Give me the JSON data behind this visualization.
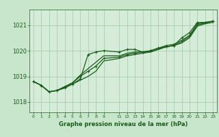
{
  "bg_color": "#c8e6cc",
  "plot_bg_color": "#d4ecd8",
  "grid_color": "#a0c8a8",
  "line_color": "#1a5c1a",
  "marker_color": "#1a5c1a",
  "xlabel": "Graphe pression niveau de la mer (hPa)",
  "xlabel_color": "#1a5c1a",
  "tick_color": "#1a5c1a",
  "ylabel_ticks": [
    1018,
    1019,
    1020,
    1021
  ],
  "xlim": [
    -0.5,
    23.5
  ],
  "ylim": [
    1017.6,
    1021.6
  ],
  "xtick_positions": [
    0,
    1,
    2,
    3,
    4,
    5,
    6,
    7,
    8,
    9,
    11,
    12,
    13,
    14,
    15,
    16,
    17,
    18,
    19,
    20,
    21,
    22,
    23
  ],
  "xtick_labels": [
    "0",
    "1",
    "2",
    "3",
    "4",
    "5",
    "6",
    "7",
    "8",
    "9",
    "11",
    "12",
    "13",
    "14",
    "15",
    "16",
    "17",
    "18",
    "19",
    "20",
    "21",
    "22",
    "23"
  ],
  "line1_x": [
    0,
    1,
    2,
    3,
    4,
    5,
    6,
    7,
    8,
    9,
    11,
    12,
    13,
    14,
    15,
    16,
    17,
    18,
    19,
    20,
    21,
    22,
    23
  ],
  "line1_y": [
    1018.8,
    1018.65,
    1018.4,
    1018.45,
    1018.55,
    1018.7,
    1018.9,
    1019.85,
    1019.95,
    1020.0,
    1019.95,
    1020.05,
    1020.05,
    1019.95,
    1020.0,
    1020.1,
    1020.15,
    1020.2,
    1020.5,
    1020.7,
    1021.1,
    1021.1,
    1021.15
  ],
  "line2_x": [
    0,
    1,
    2,
    3,
    4,
    5,
    6,
    7,
    8,
    9,
    11,
    12,
    13,
    14,
    15,
    16,
    17,
    18,
    19,
    20,
    21,
    22,
    23
  ],
  "line2_y": [
    1018.8,
    1018.65,
    1018.4,
    1018.45,
    1018.6,
    1018.75,
    1019.0,
    1019.2,
    1019.4,
    1019.7,
    1019.75,
    1019.85,
    1019.9,
    1019.95,
    1020.0,
    1020.1,
    1020.2,
    1020.25,
    1020.4,
    1020.6,
    1021.05,
    1021.1,
    1021.15
  ],
  "line3_x": [
    0,
    1,
    2,
    3,
    4,
    5,
    6,
    7,
    8,
    9,
    11,
    12,
    13,
    14,
    15,
    16,
    17,
    18,
    19,
    20,
    21,
    22,
    23
  ],
  "line3_y": [
    1018.8,
    1018.65,
    1018.4,
    1018.45,
    1018.6,
    1018.75,
    1019.05,
    1019.3,
    1019.55,
    1019.8,
    1019.8,
    1019.9,
    1019.95,
    1019.95,
    1019.95,
    1020.05,
    1020.15,
    1020.2,
    1020.35,
    1020.55,
    1021.0,
    1021.08,
    1021.15
  ],
  "line4_x": [
    0,
    1,
    2,
    3,
    4,
    5,
    6,
    7,
    8,
    9,
    11,
    12,
    13,
    14,
    15,
    16,
    17,
    18,
    19,
    20,
    21,
    22,
    23
  ],
  "line4_y": [
    1018.8,
    1018.65,
    1018.4,
    1018.45,
    1018.55,
    1018.7,
    1018.85,
    1019.0,
    1019.2,
    1019.6,
    1019.7,
    1019.8,
    1019.85,
    1019.9,
    1019.95,
    1020.05,
    1020.15,
    1020.2,
    1020.3,
    1020.5,
    1020.95,
    1021.05,
    1021.1
  ]
}
